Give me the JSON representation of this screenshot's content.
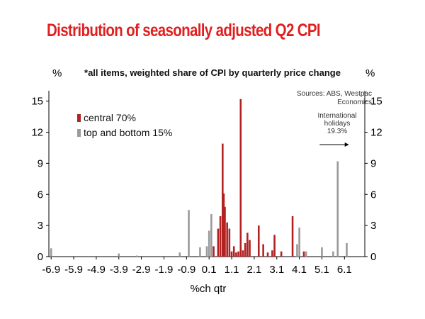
{
  "chart_data": {
    "type": "bar",
    "title": "Distribution of seasonally adjusted Q2 CPI",
    "subtitle": "*all items, weighted share of CPI by quarterly price change",
    "ylabel_left": "%",
    "ylabel_right": "%",
    "xlabel": "%ch qtr",
    "ylim": [
      0,
      16
    ],
    "xlim": [
      -7.0,
      7.0
    ],
    "yticks": [
      0,
      3,
      6,
      9,
      12,
      15
    ],
    "x_tick_values": [
      -6.9,
      -5.9,
      -4.9,
      -3.9,
      -2.9,
      -1.9,
      -0.9,
      0.1,
      1.1,
      2.1,
      3.1,
      4.1,
      5.1,
      6.1
    ],
    "x_tick_labels": [
      "-6.9",
      "-5.9",
      "-4.9",
      "-3.9",
      "-2.9",
      "-1.9",
      "-0.9",
      "0.1",
      "1.1",
      "2.1",
      "3.1",
      "4.1",
      "5.1",
      "6.1"
    ],
    "source": "Sources: ABS, Westpac Economics",
    "source_lines": [
      "Sources: ABS, Westpac",
      "Economics"
    ],
    "annotation": "International holidays 19.3%",
    "annotation_lines": [
      "International",
      "holidays",
      "19.3%"
    ],
    "annotation_arrow_x": [
      5.0,
      6.3
    ],
    "annotation_arrow_y": 10.8,
    "series": [
      {
        "name": "central 70%",
        "color": "#b22222",
        "points": [
          {
            "x": 0.3,
            "y": 1.0
          },
          {
            "x": 0.5,
            "y": 2.7
          },
          {
            "x": 0.6,
            "y": 3.9
          },
          {
            "x": 0.7,
            "y": 10.9
          },
          {
            "x": 0.75,
            "y": 6.1
          },
          {
            "x": 0.8,
            "y": 4.8
          },
          {
            "x": 0.9,
            "y": 3.3
          },
          {
            "x": 1.0,
            "y": 2.7
          },
          {
            "x": 1.1,
            "y": 0.5
          },
          {
            "x": 1.2,
            "y": 1.0
          },
          {
            "x": 1.3,
            "y": 0.4
          },
          {
            "x": 1.4,
            "y": 0.5
          },
          {
            "x": 1.5,
            "y": 15.2
          },
          {
            "x": 1.6,
            "y": 0.6
          },
          {
            "x": 1.7,
            "y": 1.3
          },
          {
            "x": 1.8,
            "y": 2.3
          },
          {
            "x": 1.9,
            "y": 1.6
          },
          {
            "x": 2.3,
            "y": 3.0
          },
          {
            "x": 2.5,
            "y": 1.2
          },
          {
            "x": 2.7,
            "y": 0.4
          },
          {
            "x": 2.9,
            "y": 0.6
          },
          {
            "x": 3.0,
            "y": 2.1
          },
          {
            "x": 3.3,
            "y": 0.5
          },
          {
            "x": 3.8,
            "y": 3.9
          },
          {
            "x": 4.3,
            "y": 0.5
          }
        ]
      },
      {
        "name": "top and bottom 15%",
        "color": "#9a9a9a",
        "points": [
          {
            "x": -6.9,
            "y": 0.8
          },
          {
            "x": -3.9,
            "y": 0.3
          },
          {
            "x": -3.1,
            "y": 0.1
          },
          {
            "x": -1.2,
            "y": 0.4
          },
          {
            "x": -0.8,
            "y": 4.5
          },
          {
            "x": -0.3,
            "y": 0.9
          },
          {
            "x": 0.0,
            "y": 1.0
          },
          {
            "x": 0.1,
            "y": 2.5
          },
          {
            "x": 0.2,
            "y": 4.1
          },
          {
            "x": 4.0,
            "y": 1.2
          },
          {
            "x": 4.1,
            "y": 2.8
          },
          {
            "x": 4.4,
            "y": 0.5
          },
          {
            "x": 5.1,
            "y": 0.9
          },
          {
            "x": 5.6,
            "y": 0.5
          },
          {
            "x": 5.8,
            "y": 9.2
          },
          {
            "x": 6.2,
            "y": 1.3
          }
        ]
      }
    ]
  }
}
